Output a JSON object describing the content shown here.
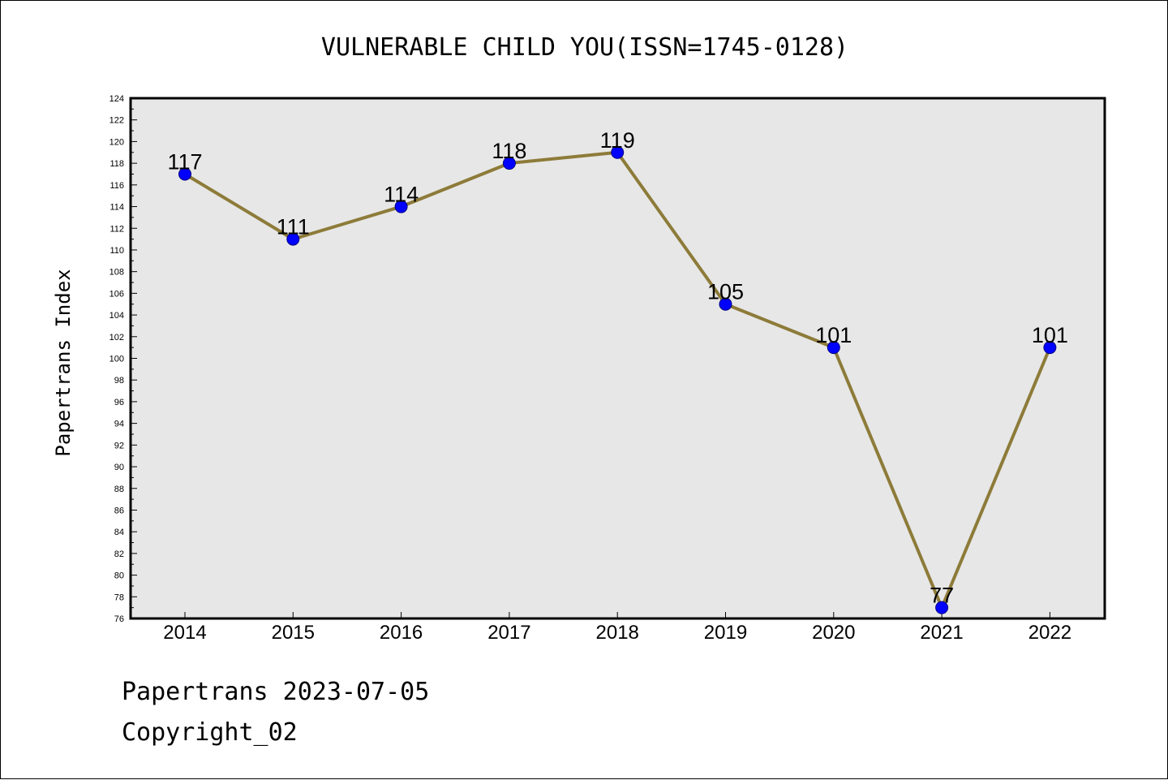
{
  "colors": {
    "plot_background": "#e7e7e7",
    "line": "#8d7b39",
    "marker_fill": "#0000ff",
    "marker_edge": "#000080",
    "axis": "#000000"
  },
  "chart_data": {
    "type": "line",
    "title": "VULNERABLE CHILD YOU(ISSN=1745-0128)",
    "xlabel": "",
    "ylabel": "Papertrans Index",
    "categories": [
      "2014",
      "2015",
      "2016",
      "2017",
      "2018",
      "2019",
      "2020",
      "2021",
      "2022"
    ],
    "series": [
      {
        "values": [
          117,
          111,
          114,
          118,
          119,
          105,
          101,
          77,
          101
        ]
      }
    ],
    "data_labels": [
      "117",
      "111",
      "114",
      "118",
      "119",
      "105",
      "101",
      "77",
      "101"
    ],
    "ylim": [
      76,
      124
    ],
    "ytick_step": 2,
    "grid": false,
    "legend": "none"
  },
  "footer": {
    "date_line": "Papertrans 2023-07-05",
    "copyright_line": "Copyright_02"
  }
}
